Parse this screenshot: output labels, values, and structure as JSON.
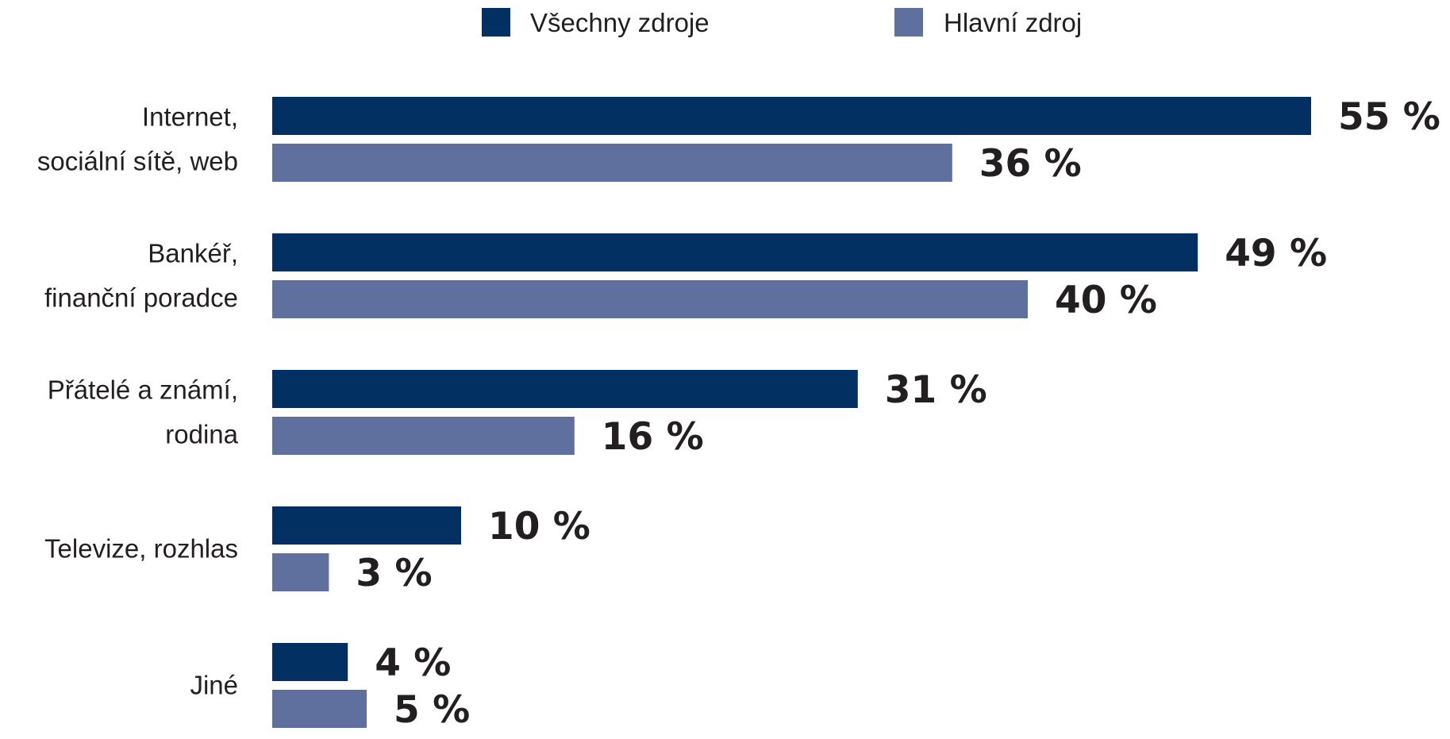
{
  "chart_data": {
    "type": "bar",
    "orientation": "horizontal",
    "categories": [
      [
        "Internet,",
        "sociální sítě, web"
      ],
      [
        "Bankéř,",
        "finanční poradce"
      ],
      [
        "Přátelé a známí,",
        "rodina"
      ],
      [
        "Televize, rozhlas"
      ],
      [
        "Jiné"
      ]
    ],
    "series": [
      {
        "name": "Všechny zdroje",
        "color": "#023062",
        "values": [
          55,
          49,
          31,
          10,
          4
        ],
        "labels": [
          "55 %",
          "49 %",
          "31 %",
          "10 %",
          "4 %"
        ]
      },
      {
        "name": "Hlavní zdroj",
        "color": "#5f6f9e",
        "values": [
          36,
          40,
          16,
          3,
          5
        ],
        "labels": [
          "36 %",
          "40 %",
          "16 %",
          "3 %",
          "5 %"
        ]
      }
    ],
    "xlim": [
      0,
      55
    ],
    "grid": false,
    "legend_position": "top-center"
  }
}
